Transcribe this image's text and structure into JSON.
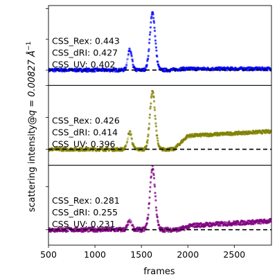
{
  "chart_data": {
    "type": "scatter",
    "xlabel": "frames",
    "ylabel_prefix": "scattering intensity@",
    "ylabel_math": "q = 0.00827 Å",
    "ylabel_sup": "−1",
    "xlim": [
      500,
      2900
    ],
    "x_ticks": [
      500,
      1000,
      1500,
      2000,
      2500
    ],
    "x_tick_labels": [
      "500",
      "1000",
      "1500",
      "2000",
      "2500"
    ],
    "panels": [
      {
        "name": "panel-1",
        "color": "#0000ff",
        "ylim": [
          -0.25,
          1.05
        ],
        "y_ticks": [
          0,
          0.5,
          1.0
        ],
        "baseline": 0,
        "annotations": [
          "CSS_Rex: 0.443",
          "CSS_dRI: 0.427",
          "CSS_UV: 0.402"
        ],
        "profile": {
          "plateau": 0.02,
          "plateau_start": 1800,
          "plateau_rise": 0.0,
          "pre_peak": 0.33,
          "main_peak": 0.93,
          "main_peak_x": 1620,
          "noise": 0.025
        }
      },
      {
        "name": "panel-2",
        "color": "#808000",
        "ylim": [
          -0.25,
          1.0
        ],
        "y_ticks": [
          0,
          0.5,
          1.0
        ],
        "baseline": 0,
        "annotations": [
          "CSS_Rex: 0.426",
          "CSS_dRI: 0.414",
          "CSS_UV: 0.396"
        ],
        "profile": {
          "plateau": 0.2,
          "plateau_start": 1850,
          "plateau_rise": 0.08,
          "pre_peak": 0.27,
          "main_peak": 0.9,
          "main_peak_x": 1620,
          "noise": 0.025
        }
      },
      {
        "name": "panel-3",
        "color": "#800080",
        "ylim": [
          -0.18,
          0.75
        ],
        "y_ticks": [
          0,
          0.5
        ],
        "baseline": 0,
        "annotations": [
          "CSS_Rex: 0.281",
          "CSS_dRI: 0.255",
          "CSS_UV: 0.231"
        ],
        "profile": {
          "plateau": 0.04,
          "plateau_start": 1900,
          "plateau_rise": 0.06,
          "pre_peak": 0.1,
          "main_peak": 0.72,
          "main_peak_x": 1620,
          "noise": 0.025
        }
      }
    ]
  }
}
